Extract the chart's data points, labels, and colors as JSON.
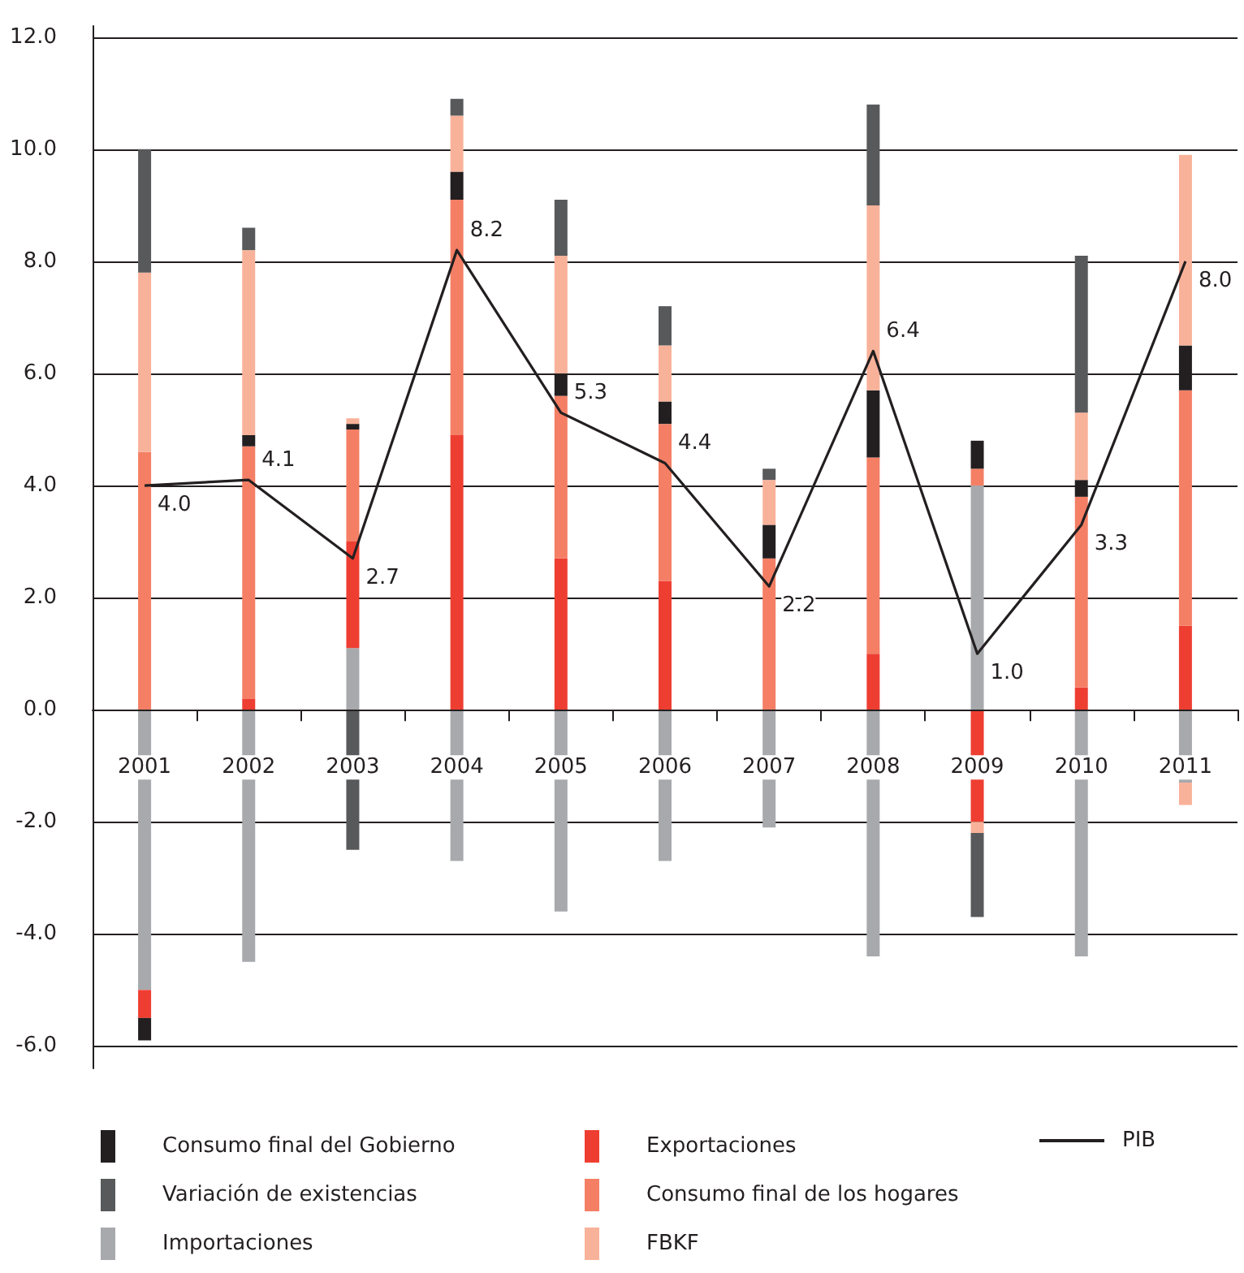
{
  "chart_data": {
    "type": "bar",
    "stacked": true,
    "categories": [
      "2001",
      "2002",
      "2003",
      "2004",
      "2005",
      "2006",
      "2007",
      "2008",
      "2009",
      "2010",
      "2011"
    ],
    "ylim": [
      -6.4,
      12.2
    ],
    "yticks": [
      {
        "value": -6,
        "label": "-6.0"
      },
      {
        "value": -4,
        "label": "-4.0"
      },
      {
        "value": -2,
        "label": "-2.0"
      },
      {
        "value": 0,
        "label": "0.0"
      },
      {
        "value": 2,
        "label": "2.0"
      },
      {
        "value": 4,
        "label": "4.0"
      },
      {
        "value": 6,
        "label": "6.0"
      },
      {
        "value": 8,
        "label": "8.0"
      },
      {
        "value": 10,
        "label": "10.0"
      },
      {
        "value": 12,
        "label": "12.0"
      }
    ],
    "grid": "y",
    "legend": "bottom",
    "series": [
      {
        "name": "Importaciones",
        "color": "#a7a9ac",
        "values": [
          -5.0,
          -4.5,
          1.1,
          -2.7,
          -3.6,
          -2.7,
          -2.1,
          -4.4,
          4.0,
          -4.4,
          -1.3
        ]
      },
      {
        "name": "Exportaciones",
        "color": "#ee3e32",
        "values": [
          -0.5,
          0.2,
          1.9,
          4.9,
          2.7,
          2.3,
          null,
          1.0,
          -2.0,
          0.4,
          1.5
        ]
      },
      {
        "name": "Consumo final de los hogares",
        "color": "#f47f65",
        "values": [
          4.6,
          4.5,
          2.0,
          4.2,
          2.9,
          2.8,
          2.7,
          3.5,
          0.3,
          3.4,
          4.2
        ]
      },
      {
        "name": "Consumo final del Gobierno",
        "color": "#231f20",
        "values": [
          -0.4,
          0.2,
          0.1,
          0.5,
          0.4,
          0.4,
          0.6,
          1.2,
          0.5,
          0.3,
          0.8
        ]
      },
      {
        "name": "FBKF",
        "color": "#f9b29a",
        "values": [
          3.2,
          3.3,
          0.1,
          1.0,
          2.1,
          1.0,
          0.8,
          3.3,
          -0.2,
          1.2,
          3.4
        ]
      },
      {
        "name": "Variación de existencias",
        "color": "#58595b",
        "values": [
          2.2,
          0.4,
          -2.5,
          0.3,
          1.0,
          0.7,
          0.2,
          1.8,
          -1.5,
          2.8,
          null
        ]
      },
      {
        "color": "#f9b29a",
        "values": [
          null,
          null,
          null,
          null,
          null,
          null,
          null,
          null,
          null,
          null,
          -0.4
        ]
      },
      {
        "name": "PIB",
        "type": "line",
        "color": "#231f20",
        "marker": "none",
        "values": [
          4.0,
          4.1,
          2.7,
          8.2,
          5.3,
          4.4,
          2.2,
          6.4,
          1.0,
          3.3,
          8.0
        ],
        "value_labels": [
          "4.0",
          "4.1",
          "2.7",
          "8.2",
          "5.3",
          "4.4",
          "2.2",
          "6.4",
          "1.0",
          "3.3",
          "8.0"
        ]
      }
    ]
  }
}
